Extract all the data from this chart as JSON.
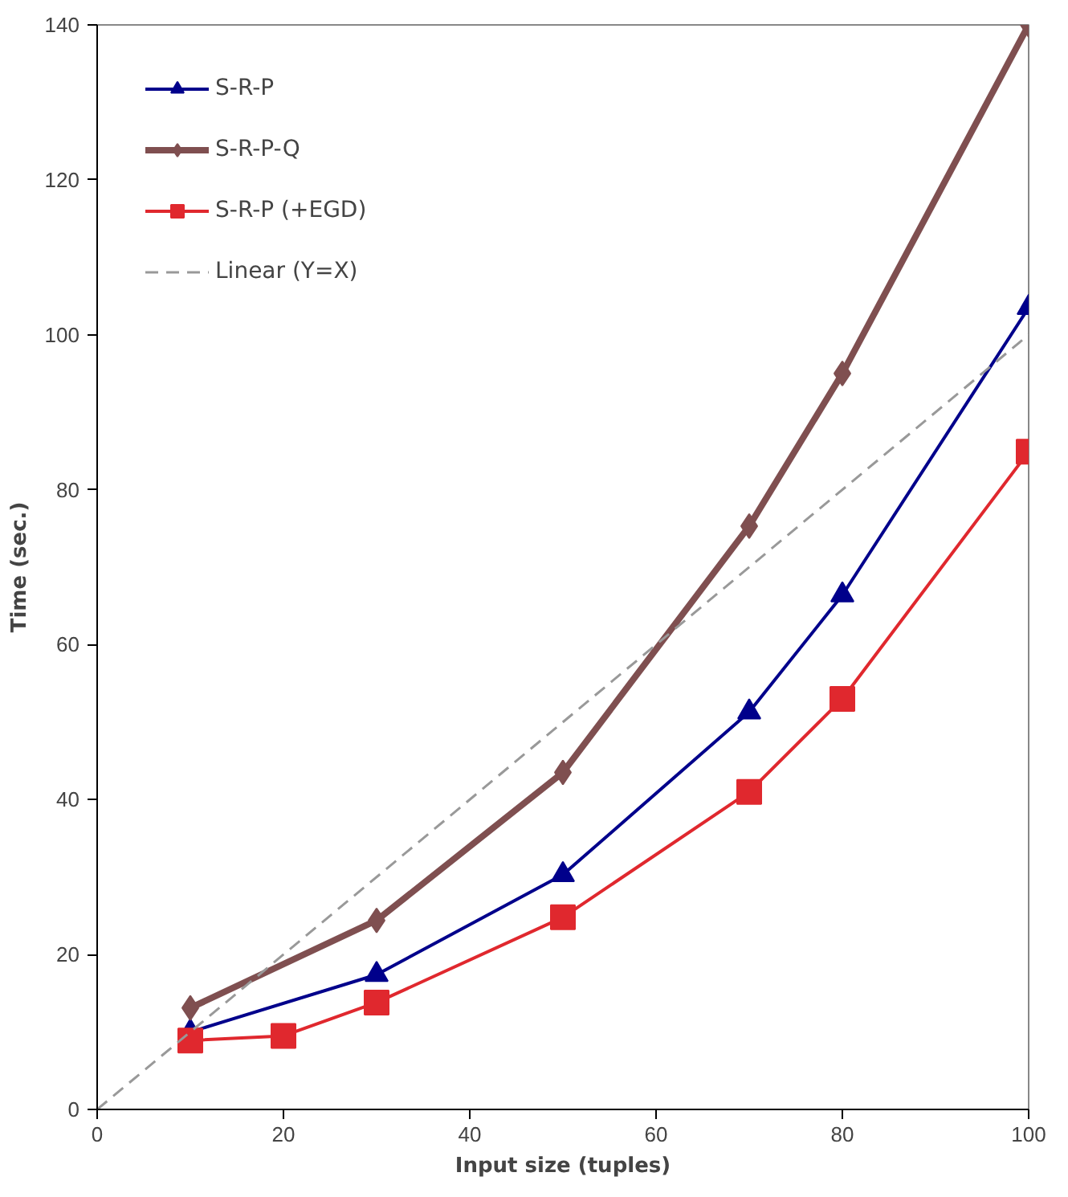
{
  "chart_data": {
    "type": "line",
    "xlabel": "Input size (tuples)",
    "ylabel": "Time (sec.)",
    "xlim": [
      0,
      100
    ],
    "ylim": [
      0,
      140
    ],
    "xticks": [
      0,
      20,
      40,
      60,
      80,
      100
    ],
    "yticks": [
      0,
      20,
      40,
      60,
      80,
      100,
      120,
      140
    ],
    "grid": false,
    "legend": "top left",
    "series": [
      {
        "name": "S-R-P",
        "color": "#00008b",
        "marker": "triangle",
        "line_style": "solid",
        "x": [
          10,
          30,
          50,
          70,
          80,
          100
        ],
        "values": [
          10,
          17.4,
          30.3,
          51.3,
          66.4,
          103.5
        ]
      },
      {
        "name": "S-R-P-Q",
        "color": "#7f4f50",
        "marker": "diamond",
        "line_style": "solid",
        "x": [
          10,
          30,
          50,
          70,
          80,
          100
        ],
        "values": [
          13.1,
          24.4,
          43.5,
          75.3,
          95,
          140
        ]
      },
      {
        "name": "S-R-P (+EGD)",
        "color": "#e0282e",
        "marker": "square",
        "line_style": "solid",
        "x": [
          10,
          20,
          30,
          50,
          70,
          80,
          100
        ],
        "values": [
          8.9,
          9.5,
          13.8,
          24.8,
          41,
          53,
          84.9
        ]
      },
      {
        "name": "Linear (Y=X)",
        "color": "#999999",
        "marker": "none",
        "line_style": "dashed",
        "x": [
          0,
          100
        ],
        "values": [
          0,
          100
        ]
      }
    ]
  }
}
